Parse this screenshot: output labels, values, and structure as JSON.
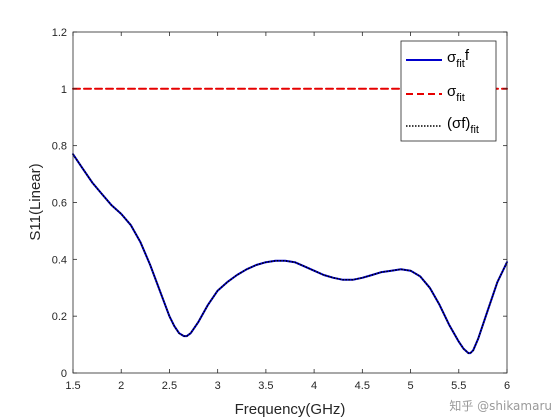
{
  "chart_data": {
    "type": "line",
    "xlabel": "Frequency(GHz)",
    "ylabel": "S11(Linear)",
    "xlim": [
      1.5,
      6
    ],
    "ylim": [
      0,
      1.2
    ],
    "xticks": [
      1.5,
      2,
      2.5,
      3,
      3.5,
      4,
      4.5,
      5,
      5.5,
      6
    ],
    "xtick_labels": [
      "1.5",
      "2",
      "2.5",
      "3",
      "3.5",
      "4",
      "4.5",
      "5",
      "5.5",
      "6"
    ],
    "yticks": [
      0,
      0.2,
      0.4,
      0.6,
      0.8,
      1,
      1.2
    ],
    "ytick_labels": [
      "0",
      "0.2",
      "0.4",
      "0.6",
      "0.8",
      "1",
      "1.2"
    ],
    "grid": false,
    "legend_position": "top-right",
    "series": [
      {
        "legend_main": "σ",
        "legend_sub": "fit",
        "legend_suffix": "f",
        "legend_sup": "",
        "style": "solid",
        "color": "#0000cc",
        "x": [
          1.5,
          1.6,
          1.7,
          1.8,
          1.9,
          2.0,
          2.1,
          2.2,
          2.3,
          2.4,
          2.5,
          2.55,
          2.6,
          2.65,
          2.68,
          2.72,
          2.8,
          2.9,
          3.0,
          3.1,
          3.2,
          3.3,
          3.4,
          3.5,
          3.6,
          3.7,
          3.8,
          3.9,
          4.0,
          4.1,
          4.2,
          4.3,
          4.4,
          4.5,
          4.6,
          4.7,
          4.8,
          4.9,
          5.0,
          5.1,
          5.2,
          5.3,
          5.4,
          5.5,
          5.55,
          5.6,
          5.62,
          5.65,
          5.7,
          5.8,
          5.9,
          6.0
        ],
        "y": [
          0.77,
          0.72,
          0.67,
          0.63,
          0.59,
          0.56,
          0.52,
          0.46,
          0.38,
          0.29,
          0.2,
          0.165,
          0.14,
          0.13,
          0.13,
          0.14,
          0.18,
          0.24,
          0.29,
          0.32,
          0.345,
          0.365,
          0.38,
          0.39,
          0.395,
          0.395,
          0.39,
          0.375,
          0.36,
          0.345,
          0.335,
          0.328,
          0.328,
          0.335,
          0.345,
          0.355,
          0.36,
          0.365,
          0.36,
          0.34,
          0.3,
          0.24,
          0.17,
          0.11,
          0.085,
          0.07,
          0.07,
          0.08,
          0.12,
          0.22,
          0.32,
          0.39
        ]
      },
      {
        "legend_main": "σ",
        "legend_sub": "fit",
        "legend_suffix": "",
        "legend_sup": "",
        "style": "dashed",
        "color": "#e60000",
        "x": [
          1.5,
          6.0
        ],
        "y": [
          1.0,
          1.0
        ]
      },
      {
        "legend_main": "(σf)",
        "legend_sub": "fit",
        "legend_suffix": "",
        "legend_sup": "",
        "style": "dotted",
        "color": "#000000",
        "x": [
          1.5,
          1.6,
          1.7,
          1.8,
          1.9,
          2.0,
          2.1,
          2.2,
          2.3,
          2.4,
          2.5,
          2.55,
          2.6,
          2.65,
          2.68,
          2.72,
          2.8,
          2.9,
          3.0,
          3.1,
          3.2,
          3.3,
          3.4,
          3.5,
          3.6,
          3.7,
          3.8,
          3.9,
          4.0,
          4.1,
          4.2,
          4.3,
          4.4,
          4.5,
          4.6,
          4.7,
          4.8,
          4.9,
          5.0,
          5.1,
          5.2,
          5.3,
          5.4,
          5.5,
          5.55,
          5.6,
          5.62,
          5.65,
          5.7,
          5.8,
          5.9,
          6.0
        ],
        "y": [
          0.77,
          0.72,
          0.67,
          0.63,
          0.59,
          0.56,
          0.52,
          0.46,
          0.38,
          0.29,
          0.2,
          0.165,
          0.14,
          0.13,
          0.13,
          0.14,
          0.18,
          0.24,
          0.29,
          0.32,
          0.345,
          0.365,
          0.38,
          0.39,
          0.395,
          0.395,
          0.39,
          0.375,
          0.36,
          0.345,
          0.335,
          0.328,
          0.328,
          0.335,
          0.345,
          0.355,
          0.36,
          0.365,
          0.36,
          0.34,
          0.3,
          0.24,
          0.17,
          0.11,
          0.085,
          0.07,
          0.07,
          0.08,
          0.12,
          0.22,
          0.32,
          0.39
        ]
      }
    ]
  },
  "watermark": "知乎 @shikamaru"
}
